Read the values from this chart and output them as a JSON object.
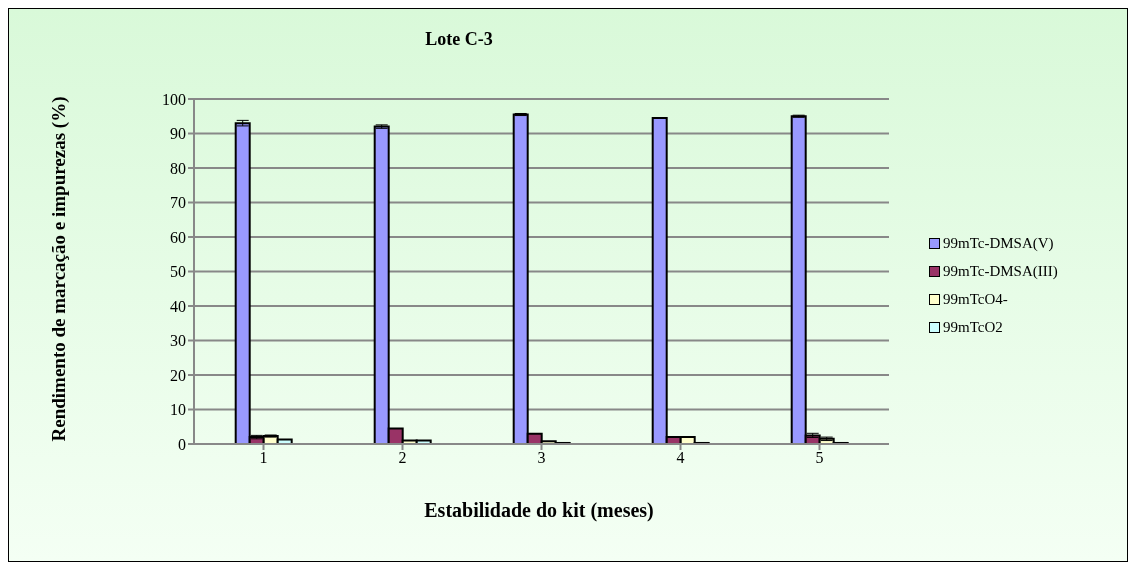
{
  "chart_data": {
    "type": "bar",
    "title": "Lote C-3",
    "xlabel": "Estabilidade do kit (meses)",
    "ylabel": "Rendimento de marcação e impurezas (%)",
    "categories": [
      "1",
      "2",
      "3",
      "4",
      "5"
    ],
    "series": [
      {
        "name": "99mTc-DMSA(V)",
        "color": "#9999ff",
        "values": [
          93,
          92,
          95.5,
          94.5,
          95
        ],
        "errors": [
          0.8,
          0.5,
          0.3,
          null,
          0.3
        ]
      },
      {
        "name": "99mTc-DMSA(III)",
        "color": "#993366",
        "values": [
          2,
          4.5,
          3,
          2,
          2.5
        ],
        "errors": [
          0.5,
          null,
          null,
          null,
          0.6
        ]
      },
      {
        "name": "99mTcO4-",
        "color": "#ffffcc",
        "values": [
          2.3,
          1,
          0.8,
          2,
          1.5
        ],
        "errors": [
          0.3,
          null,
          null,
          null,
          0.5
        ]
      },
      {
        "name": "99mTcO2",
        "color": "#ccffff",
        "values": [
          1.3,
          1,
          0.3,
          0.3,
          0.3
        ]
      }
    ],
    "ylim": [
      0,
      100
    ],
    "yticks": [
      0,
      10,
      20,
      30,
      40,
      50,
      60,
      70,
      80,
      90,
      100
    ],
    "grid": "y",
    "legend": "right"
  }
}
